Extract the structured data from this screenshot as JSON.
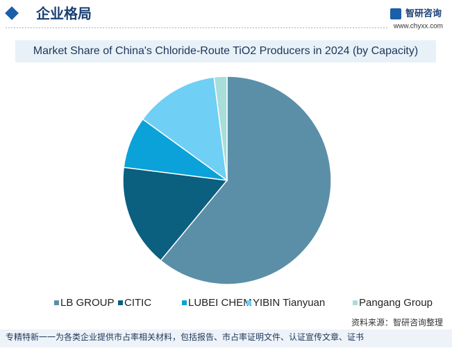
{
  "header": {
    "title": "企业格局",
    "logo": "智研咨询",
    "website": "www.chyxx.com"
  },
  "chart_data": {
    "type": "pie",
    "title": "Market Share of China's Chloride-Route TiO2 Producers in 2024 (by Capacity)",
    "categories": [
      "LB GROUP",
      "CITIC",
      "LUBEI CHEM",
      "YIBIN Tianyuan",
      "Pangang Group"
    ],
    "values": [
      61,
      16,
      8,
      13,
      2
    ],
    "colors": [
      "#5b8fa7",
      "#0b5f7f",
      "#0aa2d9",
      "#6fcff4",
      "#a9ddd9"
    ],
    "legend": "bottom"
  },
  "footer": {
    "source": "资料来源：智研咨询整理",
    "note": "专精特新一一为各类企业提供市占率相关材料，包括报告、市占率证明文件、认证宣传文章、证书"
  }
}
